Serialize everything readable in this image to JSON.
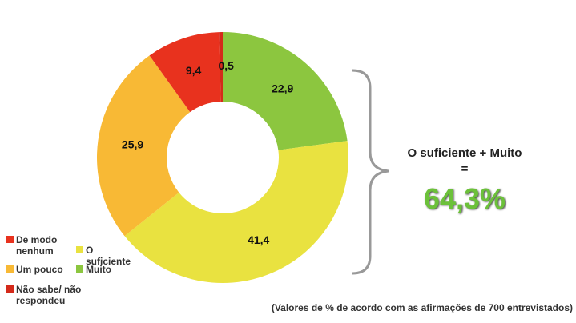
{
  "chart_data": {
    "type": "pie",
    "categories": [
      "Muito",
      "O suficiente",
      "Um pouco",
      "De modo nenhum",
      "Não sabe/ não respondeu"
    ],
    "values": [
      22.9,
      41.4,
      25.9,
      9.4,
      0.5
    ],
    "value_labels": [
      "22,9",
      "41,4",
      "25,9",
      "9,4",
      "0,5"
    ],
    "colors": [
      "#8cc63f",
      "#e9e240",
      "#f8b935",
      "#e8321e",
      "#d42a1a"
    ],
    "annotation": "O suficiente + Muito =",
    "annotation_value": "64,3%",
    "note": "(Valores de % de acordo com as afirmações de 700 entrevistados)"
  }
}
